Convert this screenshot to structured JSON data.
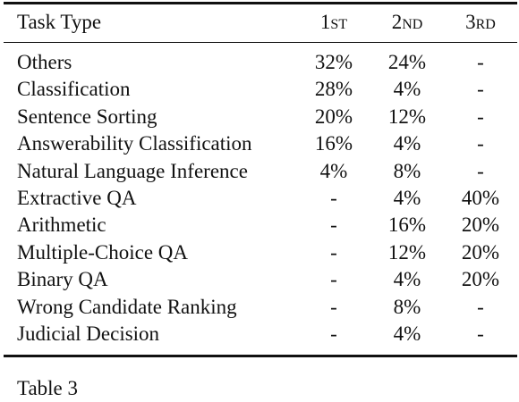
{
  "table": {
    "headers": [
      "Task Type",
      "1st",
      "2nd",
      "3rd"
    ],
    "rows": [
      [
        "Others",
        "32%",
        "24%",
        "-"
      ],
      [
        "Classification",
        "28%",
        "4%",
        "-"
      ],
      [
        "Sentence Sorting",
        "20%",
        "12%",
        "-"
      ],
      [
        "Answerability Classification",
        "16%",
        "4%",
        "-"
      ],
      [
        "Natural Language Inference",
        "4%",
        "8%",
        "-"
      ],
      [
        "Extractive QA",
        "-",
        "4%",
        "40%"
      ],
      [
        "Arithmetic",
        "-",
        "16%",
        "20%"
      ],
      [
        "Multiple-Choice QA",
        "-",
        "12%",
        "20%"
      ],
      [
        "Binary QA",
        "-",
        "4%",
        "20%"
      ],
      [
        "Wrong Candidate Ranking",
        "-",
        "8%",
        "-"
      ],
      [
        "Judicial Decision",
        "-",
        "4%",
        "-"
      ]
    ]
  },
  "caption": {
    "text": "Table 3"
  }
}
